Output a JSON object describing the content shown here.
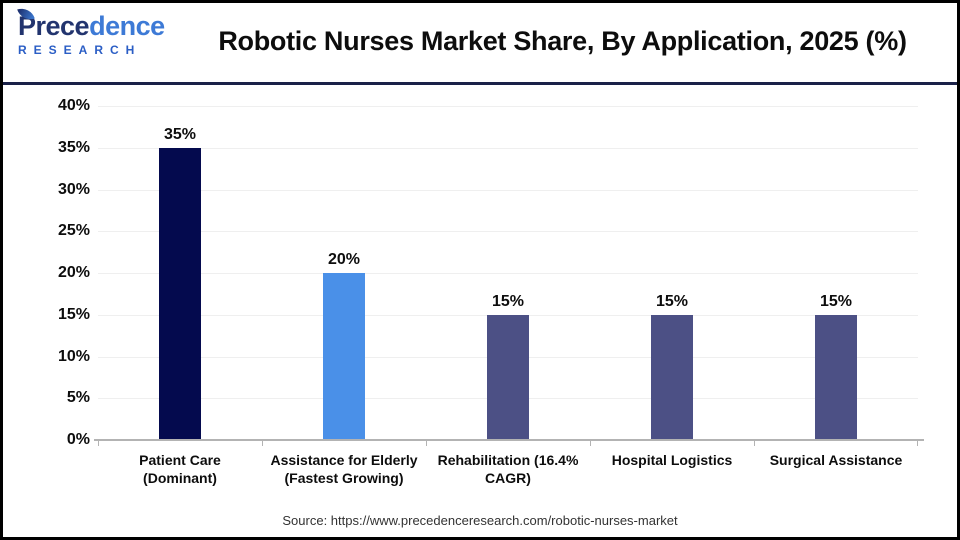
{
  "header": {
    "logo": {
      "brand": "Precedence",
      "sub": "RESEARCH"
    },
    "title": "Robotic Nurses Market Share, By Application, 2025 (%)"
  },
  "chart_data": {
    "type": "bar",
    "title": "Robotic Nurses Market Share, By Application, 2025 (%)",
    "categories": [
      "Patient Care (Dominant)",
      "Assistance for Elderly (Fastest Growing)",
      "Rehabilitation (16.4% CAGR)",
      "Hospital Logistics",
      "Surgical Assistance"
    ],
    "values": [
      35,
      20,
      15,
      15,
      15
    ],
    "value_labels": [
      "35%",
      "20%",
      "15%",
      "15%",
      "15%"
    ],
    "bar_colors": [
      "#040a4e",
      "#4a90e8",
      "#4c5085",
      "#4c5085",
      "#4c5085"
    ],
    "xlabel": "",
    "ylabel": "",
    "ylim": [
      0,
      40
    ],
    "yticks": [
      "0%",
      "5%",
      "10%",
      "15%",
      "20%",
      "25%",
      "30%",
      "35%",
      "40%"
    ],
    "ytick_values": [
      0,
      5,
      10,
      15,
      20,
      25,
      30,
      35,
      40
    ],
    "grid": true,
    "legend": false,
    "gridline_color": "#efefef",
    "axis_color": "#b3b3b3"
  },
  "footer": {
    "source": "Source: https://www.precedenceresearch.com/robotic-nurses-market"
  },
  "colors": {
    "divider_navy": "#1a2148",
    "logo_dark": "#22346e",
    "logo_light": "#3d7ad6",
    "logo_sub": "#2b5ec5"
  }
}
